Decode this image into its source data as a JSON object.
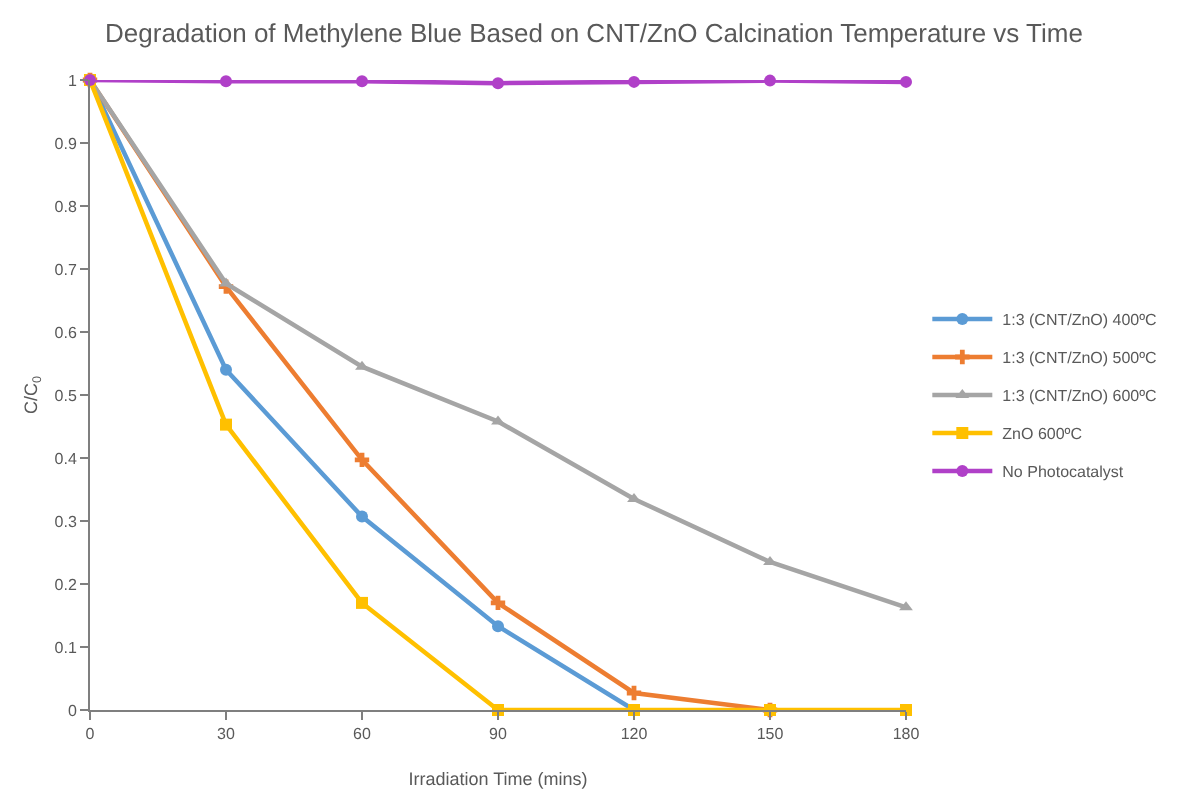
{
  "chart_data": {
    "type": "line",
    "title": "Degradation of Methylene Blue Based on CNT/ZnO Calcination Temperature vs Time",
    "xlabel": "Irradiation Time (mins)",
    "ylabel": "C/C$_{0}$",
    "x": [
      0,
      30,
      60,
      90,
      120,
      150,
      180
    ],
    "xlim": [
      0,
      180
    ],
    "xticks": [
      0,
      30,
      60,
      90,
      120,
      150,
      180
    ],
    "ylim": [
      0,
      1
    ],
    "yticks": [
      0,
      0.1,
      0.2,
      0.3,
      0.4,
      0.5,
      0.6,
      0.7,
      0.8,
      0.9,
      1
    ],
    "grid": false,
    "legend": "right",
    "line_style": "solid",
    "series": [
      {
        "name": "1:3 (CNT/ZnO) 400ºC",
        "color": "#5b9bd5",
        "marker": "circle",
        "values": [
          1,
          0.54,
          0.307,
          0.133,
          0,
          null,
          null
        ]
      },
      {
        "name": "1:3 (CNT/ZnO) 500ºC",
        "color": "#ed7d31",
        "marker": "cross",
        "values": [
          1,
          0.672,
          0.397,
          0.17,
          0.027,
          0,
          null
        ]
      },
      {
        "name": "1:3 (CNT/ZnO) 600ºC",
        "color": "#a5a5a5",
        "marker": "triangle",
        "values": [
          1,
          0.677,
          0.545,
          0.458,
          0.335,
          0.235,
          0.163
        ]
      },
      {
        "name": "ZnO 600ºC",
        "color": "#ffc000",
        "marker": "square",
        "values": [
          1,
          0.453,
          0.17,
          0,
          0,
          0,
          0
        ]
      },
      {
        "name": "No Photocatalyst",
        "color": "#b040c8",
        "marker": "circle",
        "values": [
          1,
          0.998,
          0.998,
          0.995,
          0.997,
          0.999,
          0.997
        ]
      }
    ]
  }
}
